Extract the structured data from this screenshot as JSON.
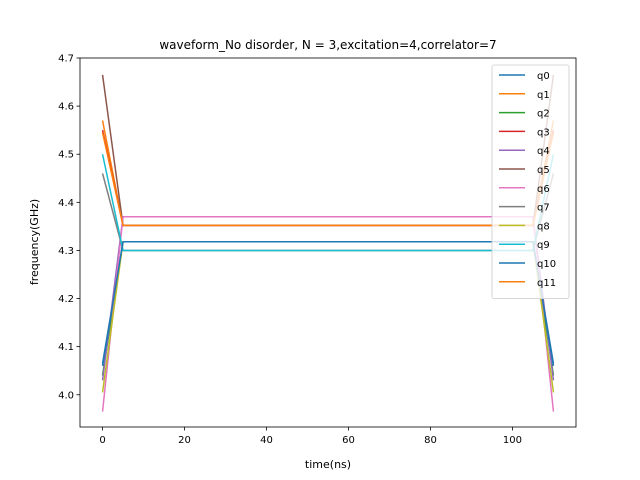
{
  "chart_data": {
    "type": "line",
    "title": "waveform_No disorder, N =  3,excitation=4,correlator=7",
    "xlabel": "time(ns)",
    "ylabel": "frequency(GHz)",
    "xlim": [
      -5.5,
      115.5
    ],
    "ylim": [
      3.933,
      4.7
    ],
    "xticks": [
      0,
      20,
      40,
      60,
      80,
      100
    ],
    "xtick_labels": [
      "0",
      "20",
      "40",
      "60",
      "80",
      "100"
    ],
    "yticks": [
      4.0,
      4.1,
      4.2,
      4.3,
      4.4,
      4.5,
      4.6,
      4.7
    ],
    "ytick_labels": [
      "4.0",
      "4.1",
      "4.2",
      "4.3",
      "4.4",
      "4.5",
      "4.6",
      "4.7"
    ],
    "legend_position": "upper-right",
    "series": [
      {
        "name": "q0",
        "color": "#1f77b4",
        "x": [
          0,
          5,
          105,
          110
        ],
        "y": [
          4.065,
          4.318,
          4.318,
          4.065
        ]
      },
      {
        "name": "q1",
        "color": "#ff7f0e",
        "x": [
          0,
          5,
          105,
          110
        ],
        "y": [
          4.57,
          4.352,
          4.352,
          4.57
        ]
      },
      {
        "name": "q2",
        "color": "#2ca02c",
        "x": [
          0,
          5,
          105,
          110
        ],
        "y": [
          4.04,
          4.318,
          4.318,
          4.04
        ]
      },
      {
        "name": "q3",
        "color": "#d62728",
        "x": [
          0,
          5,
          105,
          110
        ],
        "y": [
          4.55,
          4.352,
          4.352,
          4.55
        ]
      },
      {
        "name": "q4",
        "color": "#9467bd",
        "x": [
          0,
          5,
          105,
          110
        ],
        "y": [
          4.03,
          4.37,
          4.37,
          4.03
        ]
      },
      {
        "name": "q5",
        "color": "#8c564b",
        "x": [
          0,
          5,
          105,
          110
        ],
        "y": [
          4.665,
          4.352,
          4.352,
          4.665
        ]
      },
      {
        "name": "q6",
        "color": "#e377c2",
        "x": [
          0,
          5,
          105,
          110
        ],
        "y": [
          3.965,
          4.37,
          4.37,
          3.965
        ]
      },
      {
        "name": "q7",
        "color": "#7f7f7f",
        "x": [
          0,
          5,
          105,
          110
        ],
        "y": [
          4.46,
          4.3,
          4.3,
          4.46
        ]
      },
      {
        "name": "q8",
        "color": "#bcbd22",
        "x": [
          0,
          5,
          105,
          110
        ],
        "y": [
          4.005,
          4.318,
          4.318,
          4.005
        ]
      },
      {
        "name": "q9",
        "color": "#17becf",
        "x": [
          0,
          5,
          105,
          110
        ],
        "y": [
          4.5,
          4.3,
          4.3,
          4.5
        ]
      },
      {
        "name": "q10",
        "color": "#1f77b4",
        "x": [
          0,
          5,
          105,
          110
        ],
        "y": [
          4.06,
          4.318,
          4.318,
          4.06
        ]
      },
      {
        "name": "q11",
        "color": "#ff7f0e",
        "x": [
          0,
          5,
          105,
          110
        ],
        "y": [
          4.545,
          4.352,
          4.352,
          4.545
        ]
      }
    ]
  }
}
